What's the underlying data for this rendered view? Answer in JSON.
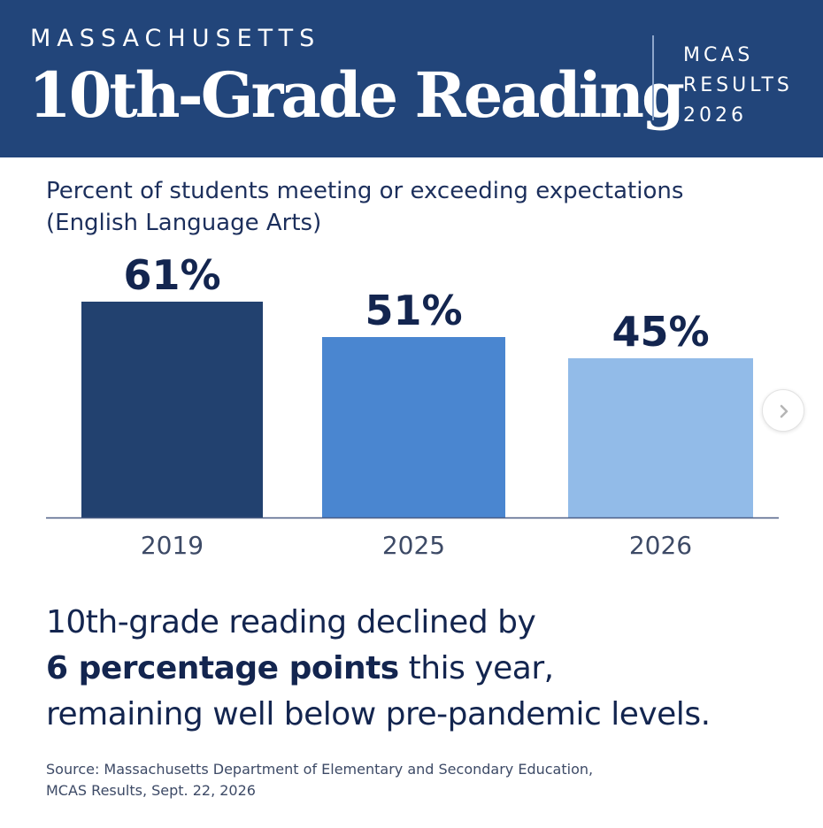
{
  "header": {
    "kicker": "MASSACHUSETTS",
    "title": "10th-Grade Reading",
    "side_lines": [
      "MCAS",
      "RESULTS",
      "2026"
    ]
  },
  "subtitle_lines": [
    "Percent of students meeting or exceeding expectations",
    "(English Language Arts)"
  ],
  "chart_data": {
    "type": "bar",
    "categories": [
      "2019",
      "2025",
      "2026"
    ],
    "values": [
      61,
      51,
      45
    ],
    "data_labels": [
      "61%",
      "51%",
      "45%"
    ],
    "ylim": [
      0,
      72
    ],
    "xlabel": "",
    "ylabel": "",
    "grid": false,
    "colors": [
      "#22416f",
      "#4a86d0",
      "#92bbe8"
    ]
  },
  "summary": {
    "line1": "10th-grade reading declined by",
    "line2_bold": "6 percentage points",
    "line2_rest": " this year,",
    "line3": "remaining well below pre-pandemic levels."
  },
  "source_lines": [
    "Source: Massachusetts Department of Elementary and Secondary Education,",
    "MCAS Results, Sept. 22, 2026"
  ],
  "navigation": {
    "next_icon": "chevron-right-icon"
  },
  "colors": {
    "header_bg": "#22457a",
    "text_dark": "#13254f",
    "baseline": "#4d5f86"
  }
}
